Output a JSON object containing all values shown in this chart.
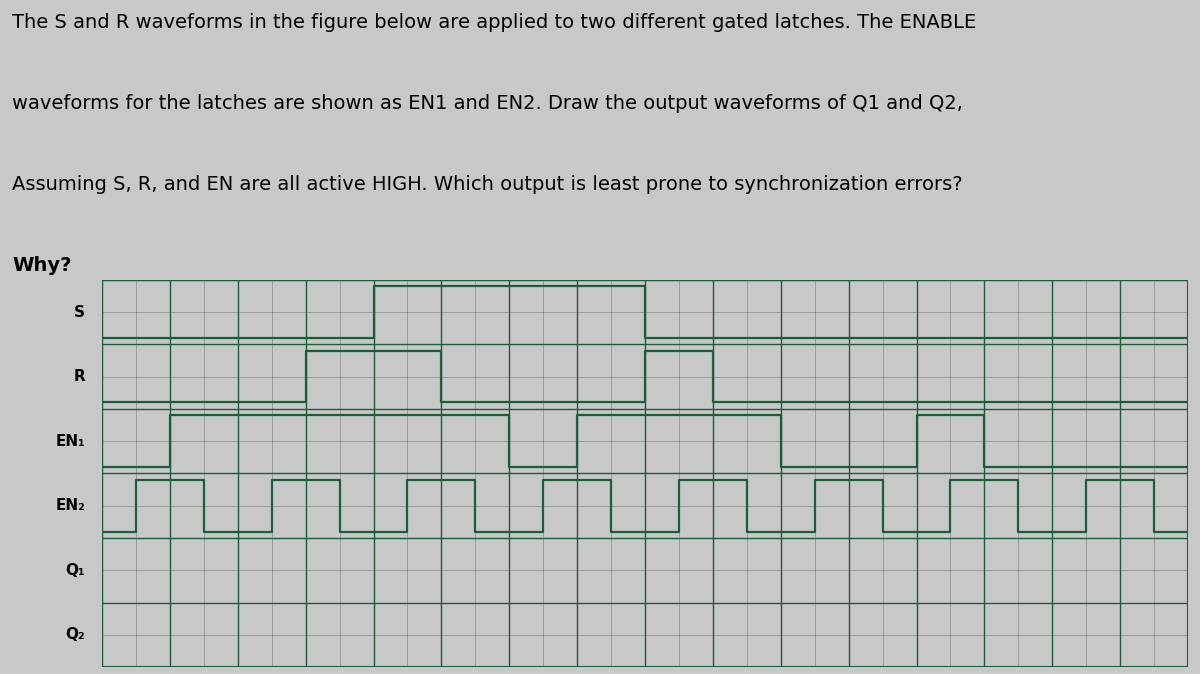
{
  "title_lines": [
    "The S and R waveforms in the figure below are applied to two different gated latches. The ENABLE",
    "waveforms for the latches are shown as EN1 and EN2. Draw the output waveforms of Q1 and Q2,",
    "Assuming S, R, and EN are all active HIGH. Which output is least prone to synchronization errors?",
    "Why?"
  ],
  "signals": [
    "S",
    "R",
    "EN₁",
    "EN₂",
    "Q₁",
    "Q₂"
  ],
  "num_cols": 32,
  "background_color": "#c8c8c8",
  "grid_color_major": "#1a5e3a",
  "grid_color_minor": "#444444",
  "text_color": "#000000",
  "waveform_color": "#1a5e3a",
  "S_waveform": [
    0,
    0,
    0,
    0,
    0,
    0,
    0,
    0,
    1,
    1,
    1,
    1,
    1,
    1,
    1,
    1,
    0,
    0,
    0,
    0,
    0,
    0,
    0,
    0,
    0,
    0,
    0,
    0,
    0,
    0,
    0,
    0
  ],
  "R_waveform": [
    0,
    0,
    0,
    0,
    0,
    0,
    1,
    1,
    1,
    1,
    0,
    0,
    0,
    0,
    0,
    0,
    1,
    1,
    0,
    0,
    0,
    0,
    0,
    0,
    0,
    0,
    0,
    0,
    0,
    0,
    0,
    0
  ],
  "EN1_waveform": [
    0,
    0,
    1,
    1,
    1,
    1,
    1,
    1,
    1,
    1,
    1,
    1,
    0,
    0,
    1,
    1,
    1,
    1,
    1,
    1,
    0,
    0,
    0,
    0,
    1,
    1,
    0,
    0,
    0,
    0,
    0,
    0
  ],
  "EN2_waveform": [
    0,
    1,
    1,
    0,
    0,
    1,
    1,
    0,
    0,
    1,
    1,
    0,
    0,
    1,
    1,
    0,
    0,
    1,
    1,
    0,
    0,
    1,
    1,
    0,
    0,
    1,
    1,
    0,
    0,
    1,
    1,
    0
  ],
  "Q1_waveform": [],
  "Q2_waveform": [],
  "fig_width": 12.0,
  "fig_height": 6.74,
  "title_fontsize": 14,
  "label_fontsize": 11
}
